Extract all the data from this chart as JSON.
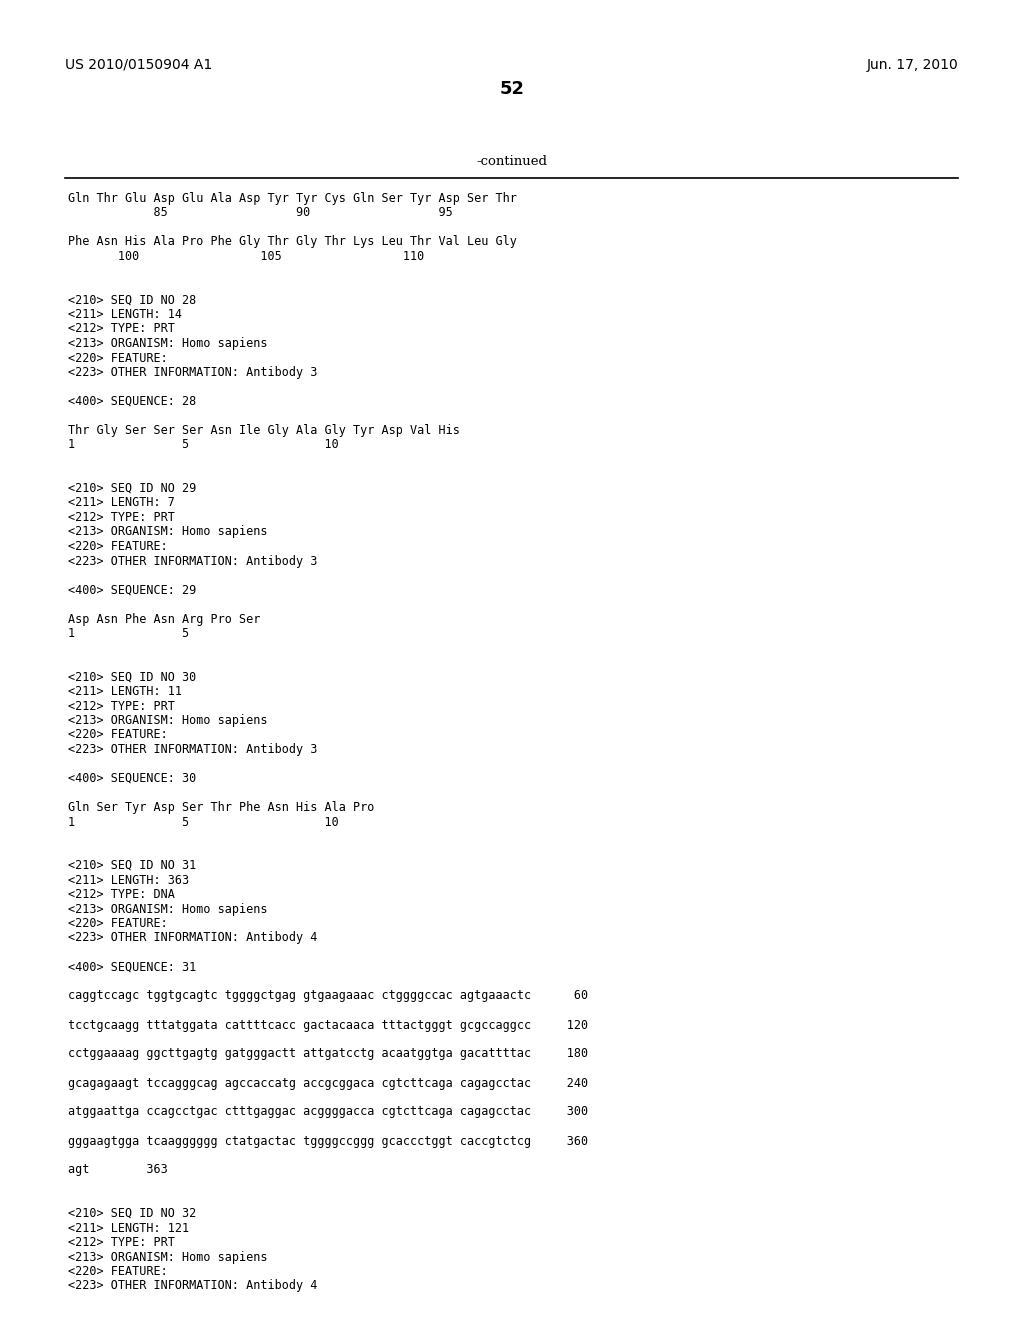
{
  "background_color": "#ffffff",
  "text_color": "#000000",
  "page_number": "52",
  "patent_number": "US 2010/0150904 A1",
  "patent_date": "Jun. 17, 2010",
  "continued_label": "-continued",
  "content_lines": [
    "Gln Thr Glu Asp Glu Ala Asp Tyr Tyr Cys Gln Ser Tyr Asp Ser Thr",
    "            85                  90                  95",
    "",
    "Phe Asn His Ala Pro Phe Gly Thr Gly Thr Lys Leu Thr Val Leu Gly",
    "       100                 105                 110",
    "",
    "",
    "<210> SEQ ID NO 28",
    "<211> LENGTH: 14",
    "<212> TYPE: PRT",
    "<213> ORGANISM: Homo sapiens",
    "<220> FEATURE:",
    "<223> OTHER INFORMATION: Antibody 3",
    "",
    "<400> SEQUENCE: 28",
    "",
    "Thr Gly Ser Ser Ser Asn Ile Gly Ala Gly Tyr Asp Val His",
    "1               5                   10",
    "",
    "",
    "<210> SEQ ID NO 29",
    "<211> LENGTH: 7",
    "<212> TYPE: PRT",
    "<213> ORGANISM: Homo sapiens",
    "<220> FEATURE:",
    "<223> OTHER INFORMATION: Antibody 3",
    "",
    "<400> SEQUENCE: 29",
    "",
    "Asp Asn Phe Asn Arg Pro Ser",
    "1               5",
    "",
    "",
    "<210> SEQ ID NO 30",
    "<211> LENGTH: 11",
    "<212> TYPE: PRT",
    "<213> ORGANISM: Homo sapiens",
    "<220> FEATURE:",
    "<223> OTHER INFORMATION: Antibody 3",
    "",
    "<400> SEQUENCE: 30",
    "",
    "Gln Ser Tyr Asp Ser Thr Phe Asn His Ala Pro",
    "1               5                   10",
    "",
    "",
    "<210> SEQ ID NO 31",
    "<211> LENGTH: 363",
    "<212> TYPE: DNA",
    "<213> ORGANISM: Homo sapiens",
    "<220> FEATURE:",
    "<223> OTHER INFORMATION: Antibody 4",
    "",
    "<400> SEQUENCE: 31",
    "",
    "caggtccagc tggtgcagtc tggggctgag gtgaagaaac ctggggccac agtgaaactc      60",
    "",
    "tcctgcaagg tttatggata cattttcacc gactacaaca tttactgggt gcgccaggcc     120",
    "",
    "cctggaaaag ggcttgagtg gatgggactt attgatcctg acaatggtga gacattttac     180",
    "",
    "gcagagaagt tccagggcag agccaccatg accgcggaca cgtcttcaga cagagcctac     240",
    "",
    "atggaattga ccagcctgac ctttgaggac acggggacca cgtcttcaga cagagcctac     300",
    "",
    "gggaagtgga tcaagggggg ctatgactac tggggccggg gcaccctggt caccgtctcg     360",
    "",
    "agt        363",
    "",
    "",
    "<210> SEQ ID NO 32",
    "<211> LENGTH: 121",
    "<212> TYPE: PRT",
    "<213> ORGANISM: Homo sapiens",
    "<220> FEATURE:",
    "<223> OTHER INFORMATION: Antibody 4"
  ]
}
